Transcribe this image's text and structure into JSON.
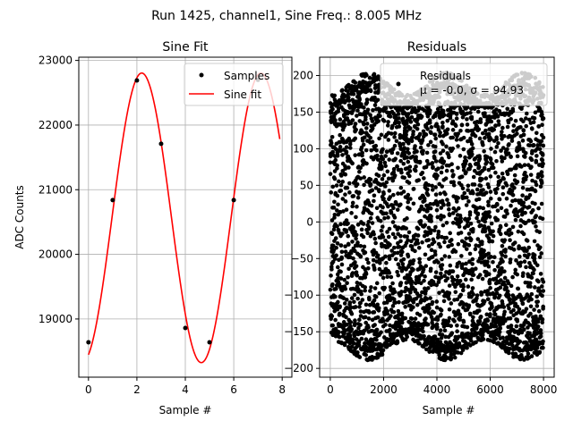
{
  "figure": {
    "suptitle": "Run 1425, channel1, Sine Freq.: 8.005 MHz"
  },
  "chart_data": [
    {
      "type": "scatter+line",
      "title": "Sine Fit",
      "xlabel": "Sample #",
      "ylabel": "ADC Counts",
      "xlim": [
        -0.4,
        8.4
      ],
      "ylim": [
        18100,
        23050
      ],
      "xticks": [
        0,
        2,
        4,
        6,
        8
      ],
      "yticks": [
        19000,
        20000,
        21000,
        22000,
        23000
      ],
      "grid": true,
      "legend_position": "top-right",
      "series": [
        {
          "name": "Samples",
          "kind": "scatter",
          "color": "#000000",
          "x": [
            0,
            1,
            2,
            3,
            4,
            5,
            6,
            7
          ],
          "y": [
            18640,
            20840,
            22690,
            21710,
            18860,
            18640,
            20840,
            22700
          ]
        },
        {
          "name": "Sine fit",
          "kind": "line",
          "color": "#ff0000",
          "model": {
            "offset": 20565,
            "amplitude": 2240,
            "period": 4.92,
            "peak_x": 2.2,
            "x_range": [
              0,
              7.9
            ]
          }
        }
      ]
    },
    {
      "type": "scatter",
      "title": "Residuals",
      "xlabel": "Sample #",
      "xlim": [
        -400,
        8400
      ],
      "ylim": [
        -212,
        225
      ],
      "xticks": [
        0,
        2000,
        4000,
        6000,
        8000
      ],
      "yticks": [
        -200,
        -150,
        -100,
        -50,
        0,
        50,
        100,
        150,
        200
      ],
      "grid": true,
      "legend_position": "top-right",
      "legend_lines": [
        "Residuals",
        "μ = -0.0, σ = 94.93"
      ],
      "series": [
        {
          "name": "Residuals",
          "color": "#000000",
          "n_points": 8000,
          "x_range": [
            0,
            8000
          ],
          "y_min": -190,
          "y_max": 205,
          "mean": -0.0,
          "sigma": 94.93
        }
      ]
    }
  ]
}
